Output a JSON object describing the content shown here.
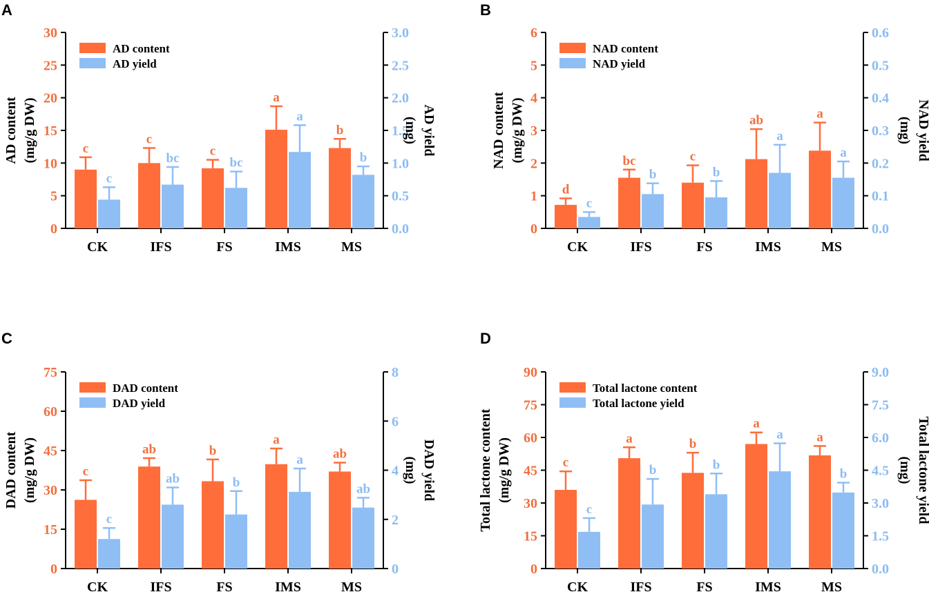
{
  "colors": {
    "content": "#ff6d3a",
    "yield": "#8fbef5",
    "content_text": "#f07040",
    "yield_text": "#8cbcf0",
    "axis": "#000000"
  },
  "chart_data": [
    {
      "panel": "A",
      "type": "bar",
      "categories": [
        "CK",
        "IFS",
        "FS",
        "IMS",
        "MS"
      ],
      "left_axis": {
        "label_line1": "AD content",
        "label_line2": "(mg/g DW)",
        "range": [
          0,
          30
        ],
        "ticks": [
          "0",
          "5",
          "10",
          "15",
          "20",
          "25",
          "30"
        ]
      },
      "right_axis": {
        "label_line1": "AD yield",
        "label_line2": "(mg)",
        "range": [
          0,
          3
        ],
        "ticks": [
          "0.0",
          "0.5",
          "1.0",
          "1.5",
          "2.0",
          "2.5",
          "3.0"
        ]
      },
      "series": [
        {
          "name": "AD content",
          "axis": "left",
          "values": [
            9.0,
            10.0,
            9.2,
            15.1,
            12.3
          ],
          "errors": [
            1.9,
            2.3,
            1.3,
            3.6,
            1.4
          ],
          "letters": [
            "c",
            "c",
            "c",
            "a",
            "b"
          ]
        },
        {
          "name": "AD yield",
          "axis": "right",
          "values": [
            0.44,
            0.67,
            0.62,
            1.17,
            0.82
          ],
          "errors": [
            0.19,
            0.27,
            0.25,
            0.41,
            0.13
          ],
          "letters": [
            "c",
            "bc",
            "bc",
            "a",
            "b"
          ]
        }
      ]
    },
    {
      "panel": "B",
      "type": "bar",
      "categories": [
        "CK",
        "IFS",
        "FS",
        "IMS",
        "MS"
      ],
      "left_axis": {
        "label_line1": "NAD content",
        "label_line2": "(mg/g DW)",
        "range": [
          0,
          6
        ],
        "ticks": [
          "0",
          "1",
          "2",
          "3",
          "4",
          "5",
          "6"
        ]
      },
      "right_axis": {
        "label_line1": "NAD yield",
        "label_line2": "(mg)",
        "range": [
          0,
          0.6
        ],
        "ticks": [
          "0.0",
          "0.1",
          "0.2",
          "0.3",
          "0.4",
          "0.5",
          "0.6"
        ]
      },
      "series": [
        {
          "name": "NAD content",
          "axis": "left",
          "values": [
            0.72,
            1.55,
            1.4,
            2.12,
            2.38
          ],
          "errors": [
            0.2,
            0.25,
            0.53,
            0.92,
            0.86
          ],
          "letters": [
            "d",
            "bc",
            "c",
            "ab",
            "a"
          ]
        },
        {
          "name": "NAD yield",
          "axis": "right",
          "values": [
            0.035,
            0.105,
            0.095,
            0.17,
            0.155
          ],
          "errors": [
            0.015,
            0.033,
            0.05,
            0.086,
            0.05
          ],
          "letters": [
            "c",
            "b",
            "b",
            "a",
            "a"
          ]
        }
      ]
    },
    {
      "panel": "C",
      "type": "bar",
      "categories": [
        "CK",
        "IFS",
        "FS",
        "IMS",
        "MS"
      ],
      "left_axis": {
        "label_line1": "DAD content",
        "label_line2": "(mg/g DW)",
        "range": [
          0,
          75
        ],
        "ticks": [
          "0",
          "15",
          "30",
          "45",
          "60",
          "75"
        ]
      },
      "right_axis": {
        "label_line1": "DAD yield",
        "label_line2": "(mg)",
        "range": [
          0,
          8
        ],
        "ticks": [
          "0",
          "2",
          "4",
          "6",
          "8"
        ]
      },
      "series": [
        {
          "name": "DAD content",
          "axis": "left",
          "values": [
            26.2,
            38.9,
            33.3,
            39.8,
            37.0
          ],
          "errors": [
            7.5,
            3.2,
            8.3,
            6.0,
            3.4
          ],
          "letters": [
            "c",
            "ab",
            "b",
            "a",
            "ab"
          ]
        },
        {
          "name": "DAD yield",
          "axis": "right",
          "values": [
            1.2,
            2.6,
            2.2,
            3.12,
            2.48
          ],
          "errors": [
            0.45,
            0.7,
            0.95,
            0.95,
            0.4
          ],
          "letters": [
            "c",
            "ab",
            "b",
            "a",
            "ab"
          ]
        }
      ]
    },
    {
      "panel": "D",
      "type": "bar",
      "categories": [
        "CK",
        "IFS",
        "FS",
        "IMS",
        "MS"
      ],
      "left_axis": {
        "label_line1": "Total lactone content",
        "label_line2": "(mg/g DW)",
        "range": [
          0,
          90
        ],
        "ticks": [
          "0",
          "15",
          "30",
          "45",
          "60",
          "75",
          "90"
        ]
      },
      "right_axis": {
        "label_line1": "Total lactone yield",
        "label_line2": "(mg)",
        "range": [
          0,
          9
        ],
        "ticks": [
          "0.0",
          "1.5",
          "3.0",
          "4.5",
          "6.0",
          "7.5",
          "9.0"
        ]
      },
      "series": [
        {
          "name": "Total lactone content",
          "axis": "left",
          "values": [
            36.0,
            50.5,
            43.8,
            57.0,
            51.8
          ],
          "errors": [
            8.5,
            5.0,
            9.2,
            5.3,
            4.3
          ],
          "letters": [
            "c",
            "a",
            "b",
            "a",
            "a"
          ]
        },
        {
          "name": "Total lactone yield",
          "axis": "right",
          "values": [
            1.68,
            2.93,
            3.4,
            4.45,
            3.48
          ],
          "errors": [
            0.63,
            1.17,
            0.95,
            1.28,
            0.45
          ],
          "letters": [
            "c",
            "b",
            "b",
            "a",
            "b"
          ]
        }
      ]
    }
  ]
}
